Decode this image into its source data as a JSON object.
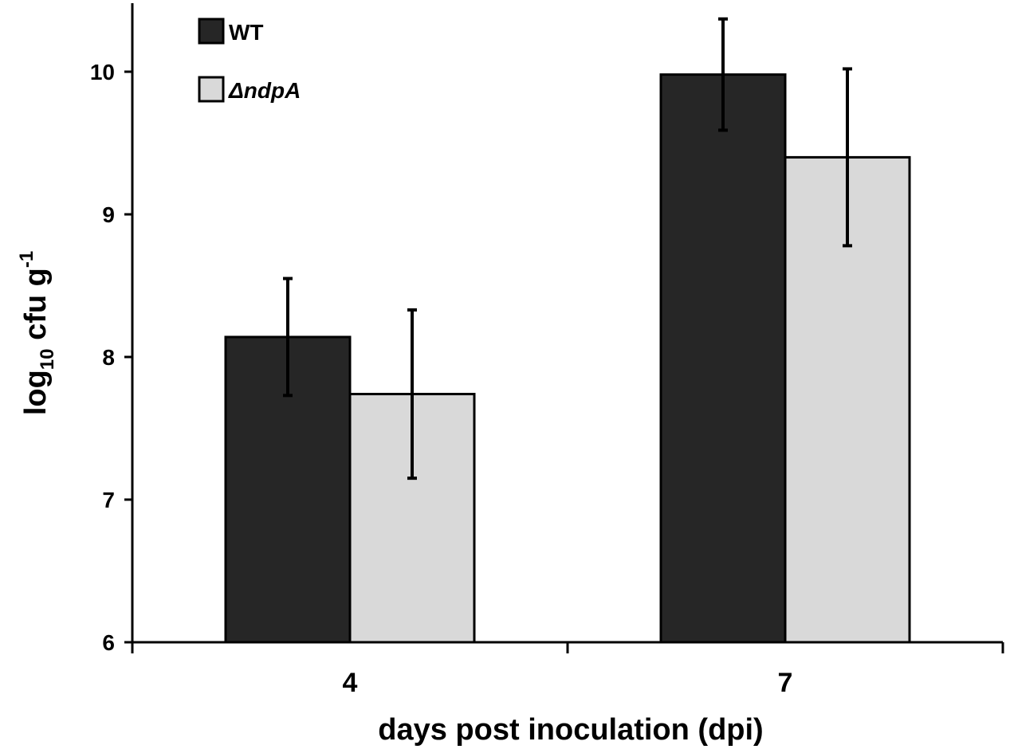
{
  "chart_data": {
    "type": "bar",
    "title": "",
    "xlabel": "days post inoculation (dpi)",
    "ylabel": {
      "base": "log",
      "sub": "10",
      "mid": " cfu g",
      "sup": "-1"
    },
    "categories": [
      "4",
      "7"
    ],
    "ylim": [
      6,
      10.5
    ],
    "yticks": [
      6,
      7,
      8,
      9,
      10
    ],
    "grid": false,
    "legend_position": "top-left",
    "series": [
      {
        "name": "WT",
        "italic": false,
        "color": "#262626",
        "values": [
          8.14,
          9.98
        ],
        "errors": [
          0.41,
          0.39
        ]
      },
      {
        "name": "ΔndpA",
        "italic": true,
        "color": "#d9d9d9",
        "values": [
          7.74,
          9.4
        ],
        "errors": [
          0.59,
          0.62
        ]
      }
    ]
  }
}
